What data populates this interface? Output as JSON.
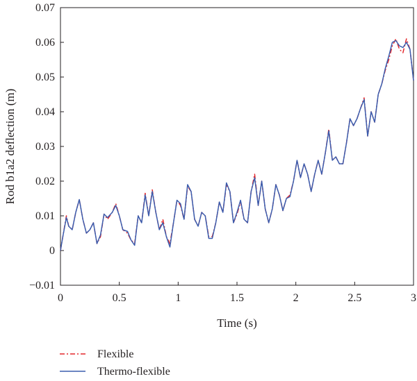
{
  "chart_data": {
    "type": "line",
    "title": "",
    "xlabel": "Time (s)",
    "ylabel": "Rod b1a2 deflection (m)",
    "xlim": [
      0,
      3
    ],
    "ylim": [
      -0.01,
      0.07
    ],
    "x_ticks": [
      {
        "value": 0,
        "label": "0"
      },
      {
        "value": 0.5,
        "label": "0.5"
      },
      {
        "value": 1,
        "label": "1"
      },
      {
        "value": 1.5,
        "label": "1.5"
      },
      {
        "value": 2,
        "label": "2"
      },
      {
        "value": 2.5,
        "label": "2.5"
      },
      {
        "value": 3,
        "label": "3"
      }
    ],
    "y_ticks": [
      {
        "value": -0.01,
        "label": "−0.01"
      },
      {
        "value": 0,
        "label": "0"
      },
      {
        "value": 0.01,
        "label": "0.01"
      },
      {
        "value": 0.02,
        "label": "0.02"
      },
      {
        "value": 0.03,
        "label": "0.03"
      },
      {
        "value": 0.04,
        "label": "0.04"
      },
      {
        "value": 0.05,
        "label": "0.05"
      },
      {
        "value": 0.06,
        "label": "0.06"
      },
      {
        "value": 0.07,
        "label": "0.07"
      }
    ],
    "grid": false,
    "legend_position": "bottom-left, below plot",
    "series": [
      {
        "name": "Flexible",
        "color": "#e3262b",
        "line_style": "dash-dot",
        "x": [
          0,
          0.02,
          0.05,
          0.07,
          0.1,
          0.13,
          0.16,
          0.19,
          0.22,
          0.25,
          0.28,
          0.31,
          0.34,
          0.37,
          0.4,
          0.44,
          0.47,
          0.5,
          0.53,
          0.57,
          0.6,
          0.63,
          0.66,
          0.69,
          0.72,
          0.75,
          0.78,
          0.81,
          0.84,
          0.87,
          0.9,
          0.93,
          0.96,
          0.99,
          1.02,
          1.05,
          1.08,
          1.11,
          1.14,
          1.17,
          1.2,
          1.23,
          1.26,
          1.29,
          1.32,
          1.35,
          1.38,
          1.41,
          1.44,
          1.47,
          1.5,
          1.53,
          1.56,
          1.59,
          1.62,
          1.65,
          1.68,
          1.71,
          1.74,
          1.77,
          1.8,
          1.83,
          1.86,
          1.89,
          1.92,
          1.95,
          1.98,
          2.01,
          2.04,
          2.07,
          2.1,
          2.13,
          2.16,
          2.19,
          2.22,
          2.25,
          2.28,
          2.31,
          2.34,
          2.37,
          2.4,
          2.43,
          2.46,
          2.49,
          2.52,
          2.55,
          2.58,
          2.61,
          2.64,
          2.67,
          2.7,
          2.73,
          2.76,
          2.79,
          2.82,
          2.85,
          2.88,
          2.91,
          2.94,
          2.97,
          3.0
        ],
        "y": [
          0,
          0.004,
          0.01,
          0.007,
          0.006,
          0.011,
          0.0147,
          0.009,
          0.005,
          0.006,
          0.008,
          0.002,
          0.004,
          0.0105,
          0.009,
          0.011,
          0.0135,
          0.01,
          0.006,
          0.005,
          0.003,
          0.002,
          0.01,
          0.008,
          0.0165,
          0.01,
          0.0175,
          0.011,
          0.006,
          0.009,
          0.004,
          0.002,
          0.008,
          0.0145,
          0.013,
          0.009,
          0.0185,
          0.017,
          0.009,
          0.007,
          0.011,
          0.01,
          0.004,
          0.004,
          0.008,
          0.014,
          0.011,
          0.019,
          0.017,
          0.008,
          0.0105,
          0.014,
          0.009,
          0.008,
          0.017,
          0.022,
          0.013,
          0.02,
          0.012,
          0.008,
          0.012,
          0.019,
          0.016,
          0.0115,
          0.015,
          0.016,
          0.02,
          0.026,
          0.021,
          0.025,
          0.022,
          0.017,
          0.022,
          0.026,
          0.022,
          0.028,
          0.035,
          0.026,
          0.027,
          0.025,
          0.025,
          0.031,
          0.038,
          0.036,
          0.038,
          0.041,
          0.044,
          0.033,
          0.04,
          0.037,
          0.045,
          0.048,
          0.052,
          0.055,
          0.059,
          0.061,
          0.058,
          0.057,
          0.061,
          0.058,
          0.049
        ]
      },
      {
        "name": "Thermo-flexible",
        "color": "#3a5dae",
        "line_style": "solid",
        "x": [
          0,
          0.02,
          0.05,
          0.07,
          0.1,
          0.13,
          0.16,
          0.19,
          0.22,
          0.25,
          0.28,
          0.31,
          0.34,
          0.37,
          0.4,
          0.44,
          0.47,
          0.5,
          0.53,
          0.57,
          0.6,
          0.63,
          0.66,
          0.69,
          0.72,
          0.75,
          0.78,
          0.81,
          0.84,
          0.87,
          0.9,
          0.93,
          0.96,
          0.99,
          1.02,
          1.05,
          1.08,
          1.11,
          1.14,
          1.17,
          1.2,
          1.23,
          1.26,
          1.29,
          1.32,
          1.35,
          1.38,
          1.41,
          1.44,
          1.47,
          1.5,
          1.53,
          1.56,
          1.59,
          1.62,
          1.65,
          1.68,
          1.71,
          1.74,
          1.77,
          1.8,
          1.83,
          1.86,
          1.89,
          1.92,
          1.95,
          1.98,
          2.01,
          2.04,
          2.07,
          2.1,
          2.13,
          2.16,
          2.19,
          2.22,
          2.25,
          2.28,
          2.31,
          2.34,
          2.37,
          2.4,
          2.43,
          2.46,
          2.49,
          2.52,
          2.55,
          2.58,
          2.61,
          2.64,
          2.67,
          2.7,
          2.73,
          2.76,
          2.79,
          2.82,
          2.85,
          2.88,
          2.91,
          2.94,
          2.97,
          3.0
        ],
        "y": [
          0,
          0.004,
          0.0095,
          0.007,
          0.006,
          0.011,
          0.0147,
          0.009,
          0.005,
          0.006,
          0.008,
          0.002,
          0.0045,
          0.0105,
          0.0095,
          0.011,
          0.013,
          0.01,
          0.006,
          0.0055,
          0.003,
          0.0015,
          0.01,
          0.008,
          0.016,
          0.01,
          0.017,
          0.011,
          0.006,
          0.008,
          0.004,
          0.001,
          0.008,
          0.0145,
          0.0135,
          0.009,
          0.019,
          0.017,
          0.009,
          0.007,
          0.011,
          0.01,
          0.0035,
          0.0035,
          0.008,
          0.014,
          0.011,
          0.0195,
          0.017,
          0.008,
          0.011,
          0.0145,
          0.009,
          0.008,
          0.017,
          0.021,
          0.013,
          0.02,
          0.012,
          0.008,
          0.012,
          0.019,
          0.016,
          0.0115,
          0.015,
          0.0155,
          0.02,
          0.026,
          0.021,
          0.025,
          0.022,
          0.017,
          0.022,
          0.026,
          0.022,
          0.028,
          0.0345,
          0.026,
          0.027,
          0.025,
          0.025,
          0.031,
          0.038,
          0.036,
          0.038,
          0.041,
          0.0435,
          0.033,
          0.04,
          0.037,
          0.045,
          0.048,
          0.0525,
          0.056,
          0.06,
          0.0605,
          0.059,
          0.0585,
          0.06,
          0.058,
          0.049
        ]
      }
    ]
  }
}
